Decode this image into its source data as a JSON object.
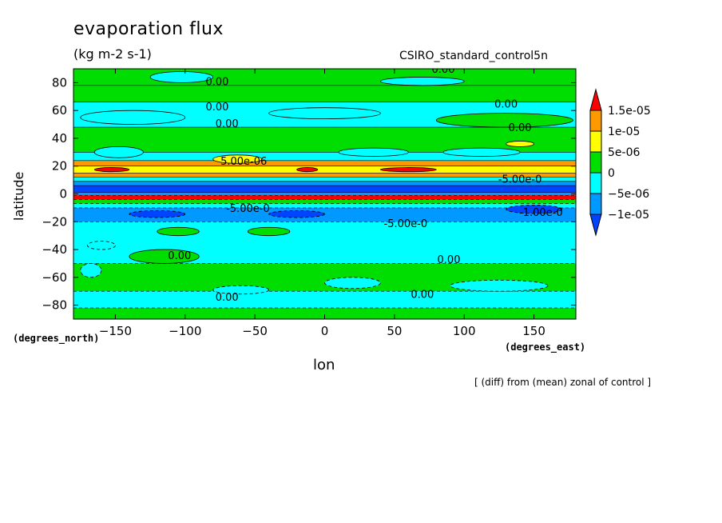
{
  "chart_data": {
    "type": "heatmap",
    "title": "evaporation flux",
    "subtitle": "(kg m-2 s-1)",
    "dataset": "CSIRO_standard_control5n",
    "xlabel": "lon",
    "ylabel": "latitude",
    "x_units": "(degrees_east)",
    "y_units": "(degrees_north)",
    "footnote": "[ (diff) from (mean) zonal of control ]",
    "xlim": [
      -180,
      180
    ],
    "ylim": [
      -90,
      90
    ],
    "x_ticks": [
      -150,
      -100,
      -50,
      0,
      50,
      100,
      150
    ],
    "y_ticks": [
      -80,
      -60,
      -40,
      -20,
      0,
      20,
      40,
      60,
      80
    ],
    "colorbar": {
      "labels": [
        "1.5e-05",
        "1e-05",
        "5e-06",
        "0",
        "-5e-06",
        "-1e-05"
      ],
      "colors": [
        "#ff0000",
        "#ff9900",
        "#ffff00",
        "#00dd00",
        "#00ffff",
        "#0099ff",
        "#0044ff"
      ]
    },
    "colors": {
      "red": "#ff0000",
      "orange": "#ff9900",
      "yellow": "#ffff00",
      "green": "#00dd00",
      "cyan": "#00ffff",
      "lightblue": "#0099ff",
      "blue": "#0044ff"
    },
    "zonal_bands": [
      {
        "lat": [
          78,
          90
        ],
        "color": "green"
      },
      {
        "lat": [
          66,
          78
        ],
        "color": "green"
      },
      {
        "lat": [
          48,
          66
        ],
        "color": "cyan"
      },
      {
        "lat": [
          30,
          48
        ],
        "color": "green"
      },
      {
        "lat": [
          24,
          30
        ],
        "color": "cyan"
      },
      {
        "lat": [
          20,
          24
        ],
        "color": "orange"
      },
      {
        "lat": [
          15,
          20
        ],
        "color": "yellow"
      },
      {
        "lat": [
          12,
          15
        ],
        "color": "orange"
      },
      {
        "lat": [
          9,
          12
        ],
        "color": "cyan"
      },
      {
        "lat": [
          6,
          9
        ],
        "color": "lightblue"
      },
      {
        "lat": [
          1,
          6
        ],
        "color": "blue"
      },
      {
        "lat": [
          -1,
          1
        ],
        "color": "lightblue"
      },
      {
        "lat": [
          -4,
          -1
        ],
        "color": "red"
      },
      {
        "lat": [
          -7,
          -4
        ],
        "color": "green"
      },
      {
        "lat": [
          -10,
          -7
        ],
        "color": "cyan"
      },
      {
        "lat": [
          -20,
          -10
        ],
        "color": "lightblue"
      },
      {
        "lat": [
          -50,
          -20
        ],
        "color": "cyan"
      },
      {
        "lat": [
          -70,
          -50
        ],
        "color": "green"
      },
      {
        "lat": [
          -82,
          -70
        ],
        "color": "cyan"
      },
      {
        "lat": [
          -90,
          -82
        ],
        "color": "green"
      }
    ],
    "patches": [
      {
        "lon": [
          -175,
          -100
        ],
        "lat": [
          50,
          60
        ],
        "color": "cyan"
      },
      {
        "lon": [
          -40,
          40
        ],
        "lat": [
          54,
          62
        ],
        "color": "cyan"
      },
      {
        "lon": [
          80,
          178
        ],
        "lat": [
          48,
          58
        ],
        "color": "green"
      },
      {
        "lon": [
          -125,
          -80
        ],
        "lat": [
          80,
          88
        ],
        "color": "cyan"
      },
      {
        "lon": [
          40,
          100
        ],
        "lat": [
          78,
          84
        ],
        "color": "cyan"
      },
      {
        "lon": [
          -165,
          -130
        ],
        "lat": [
          26,
          34
        ],
        "color": "cyan"
      },
      {
        "lon": [
          10,
          60
        ],
        "lat": [
          27,
          33
        ],
        "color": "cyan"
      },
      {
        "lon": [
          85,
          140
        ],
        "lat": [
          27,
          33
        ],
        "color": "cyan"
      },
      {
        "lon": [
          130,
          150
        ],
        "lat": [
          34,
          38
        ],
        "color": "yellow"
      },
      {
        "lon": [
          -80,
          -45
        ],
        "lat": [
          22,
          28
        ],
        "color": "yellow"
      },
      {
        "lon": [
          -20,
          -5
        ],
        "lat": [
          16,
          19
        ],
        "color": "red"
      },
      {
        "lon": [
          40,
          80
        ],
        "lat": [
          16,
          19
        ],
        "color": "red"
      },
      {
        "lon": [
          -165,
          -140
        ],
        "lat": [
          16,
          19
        ],
        "color": "red"
      },
      {
        "lon": [
          130,
          170
        ],
        "lat": [
          -14,
          -8
        ],
        "color": "blue"
      },
      {
        "lon": [
          -40,
          0
        ],
        "lat": [
          -17,
          -12
        ],
        "color": "blue"
      },
      {
        "lon": [
          -140,
          -100
        ],
        "lat": [
          -17,
          -12
        ],
        "color": "blue"
      },
      {
        "lon": [
          -120,
          -90
        ],
        "lat": [
          -30,
          -24
        ],
        "color": "green"
      },
      {
        "lon": [
          -55,
          -25
        ],
        "lat": [
          -30,
          -24
        ],
        "color": "green"
      },
      {
        "lon": [
          -175,
          -160
        ],
        "lat": [
          -60,
          -50
        ],
        "color": "cyan"
      },
      {
        "lon": [
          -170,
          -150
        ],
        "lat": [
          -40,
          -34
        ],
        "color": "cyan"
      },
      {
        "lon": [
          -140,
          -90
        ],
        "lat": [
          -50,
          -40
        ],
        "color": "green"
      },
      {
        "lon": [
          -80,
          -40
        ],
        "lat": [
          -72,
          -66
        ],
        "color": "cyan"
      },
      {
        "lon": [
          0,
          40
        ],
        "lat": [
          -68,
          -60
        ],
        "color": "cyan"
      },
      {
        "lon": [
          90,
          160
        ],
        "lat": [
          -70,
          -62
        ],
        "color": "cyan"
      }
    ],
    "contour_labels": [
      {
        "text": "0.00",
        "lon": -77,
        "lat": 81
      },
      {
        "text": "0.00",
        "lon": 85,
        "lat": 90
      },
      {
        "text": "0.00",
        "lon": -77,
        "lat": 63
      },
      {
        "text": "0.00",
        "lon": 130,
        "lat": 65
      },
      {
        "text": "0.00",
        "lon": -70,
        "lat": 51
      },
      {
        "text": "0.00",
        "lon": 140,
        "lat": 48
      },
      {
        "text": "5.00e-06",
        "lon": -58,
        "lat": 24
      },
      {
        "text": "-5.00e-0",
        "lon": 140,
        "lat": 11
      },
      {
        "text": "-1.00e-0",
        "lon": 155,
        "lat": -13
      },
      {
        "text": "-5.00e-0",
        "lon": 58,
        "lat": -21
      },
      {
        "text": "-5.00e-0",
        "lon": -55,
        "lat": -10
      },
      {
        "text": "0.00",
        "lon": -104,
        "lat": -44
      },
      {
        "text": "0.00",
        "lon": 89,
        "lat": -47
      },
      {
        "text": "0.00",
        "lon": -70,
        "lat": -74
      },
      {
        "text": "0.00",
        "lon": 70,
        "lat": -72
      }
    ]
  }
}
